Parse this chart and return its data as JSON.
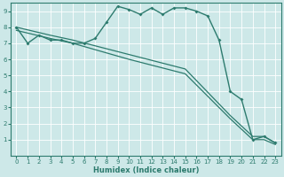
{
  "xlabel": "Humidex (Indice chaleur)",
  "background_color": "#cde8e8",
  "line_color": "#2d7b6e",
  "grid_color": "#b8d8d8",
  "xlim": [
    -0.5,
    23.5
  ],
  "ylim": [
    0,
    9.5
  ],
  "xticks": [
    0,
    1,
    2,
    3,
    4,
    5,
    6,
    7,
    8,
    9,
    10,
    11,
    12,
    13,
    14,
    15,
    16,
    17,
    18,
    19,
    20,
    21,
    22,
    23
  ],
  "yticks": [
    1,
    2,
    3,
    4,
    5,
    6,
    7,
    8,
    9
  ],
  "curve1_x": [
    0,
    1,
    2,
    3,
    4,
    5,
    6,
    7,
    8,
    9,
    10,
    11,
    12,
    13,
    14,
    15,
    16,
    17,
    18,
    19,
    20,
    21,
    22,
    23
  ],
  "curve1_y": [
    8.0,
    7.0,
    7.5,
    7.2,
    7.2,
    7.0,
    7.0,
    7.3,
    8.3,
    9.3,
    9.1,
    8.8,
    9.2,
    8.8,
    9.2,
    9.2,
    9.0,
    8.7,
    7.2,
    4.0,
    3.5,
    1.0,
    1.2,
    0.8
  ],
  "diag1_x": [
    0,
    3,
    5,
    10,
    15,
    19,
    21,
    22,
    23
  ],
  "diag1_y": [
    8.0,
    7.5,
    7.2,
    6.3,
    5.4,
    2.5,
    1.2,
    1.2,
    0.8
  ],
  "diag2_x": [
    0,
    3,
    5,
    10,
    15,
    19,
    21,
    22,
    23
  ],
  "diag2_y": [
    7.8,
    7.3,
    7.0,
    6.0,
    5.1,
    2.3,
    1.0,
    1.0,
    0.7
  ]
}
